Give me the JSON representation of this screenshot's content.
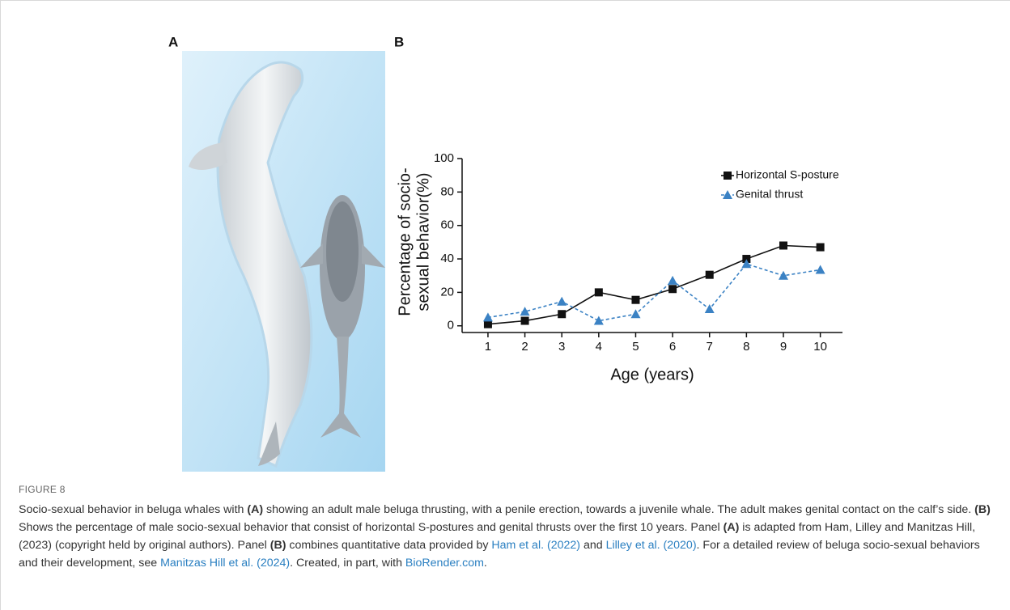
{
  "figure": {
    "panel_a_label": "A",
    "panel_b_label": "B",
    "label": "FIGURE 8",
    "caption_parts": [
      {
        "text": "Socio-sexual behavior in beluga whales with ",
        "style": "plain"
      },
      {
        "text": "(A)",
        "style": "bold"
      },
      {
        "text": " showing an adult male beluga thrusting, with a penile erection, towards a juvenile whale. The adult makes genital contact on the calf’s side. ",
        "style": "plain"
      },
      {
        "text": "(B)",
        "style": "bold"
      },
      {
        "text": " Shows the percentage of male socio-sexual behavior that consist of horizontal S-postures and genital thrusts over the first 10 years. Panel ",
        "style": "plain"
      },
      {
        "text": "(A)",
        "style": "bold"
      },
      {
        "text": " is adapted from Ham, Lilley and Manitzas Hill, (2023) (copyright held by original authors). Panel ",
        "style": "plain"
      },
      {
        "text": "(B)",
        "style": "bold"
      },
      {
        "text": " combines quantitative data provided by ",
        "style": "plain"
      },
      {
        "text": "Ham et al. (2022)",
        "style": "link"
      },
      {
        "text": " and ",
        "style": "plain"
      },
      {
        "text": "Lilley et al. (2020)",
        "style": "link"
      },
      {
        "text": ". For a detailed review of beluga socio-sexual behaviors and their development, see ",
        "style": "plain"
      },
      {
        "text": "Manitzas Hill et al. (2024)",
        "style": "link"
      },
      {
        "text": ". Created, in part, with ",
        "style": "plain"
      },
      {
        "text": "BioRender.com",
        "style": "link"
      },
      {
        "text": ".",
        "style": "plain"
      }
    ]
  },
  "chart_data": {
    "type": "line",
    "xlabel": "Age (years)",
    "ylabel": [
      "Percentage of socio-",
      "sexual behavior(%)"
    ],
    "x": [
      1,
      2,
      3,
      4,
      5,
      6,
      7,
      8,
      9,
      10
    ],
    "xlim": [
      0.3,
      10.6
    ],
    "xticks": [
      1,
      2,
      3,
      4,
      5,
      6,
      7,
      8,
      9,
      10
    ],
    "ylim": [
      -4,
      100
    ],
    "yticks": [
      0,
      20,
      40,
      60,
      80,
      100
    ],
    "legend": "upper right",
    "series": [
      {
        "name": "Horizontal S-posture",
        "color": "#111111",
        "marker": "square",
        "dash": false,
        "values": [
          1,
          3,
          7,
          20,
          15.5,
          22,
          30.5,
          40,
          48,
          47
        ]
      },
      {
        "name": "Genital thrust",
        "color": "#3b82c4",
        "marker": "triangle",
        "dash": true,
        "values": [
          5,
          8.5,
          14.5,
          3,
          7,
          27,
          10,
          37,
          30,
          33.5
        ]
      }
    ]
  }
}
